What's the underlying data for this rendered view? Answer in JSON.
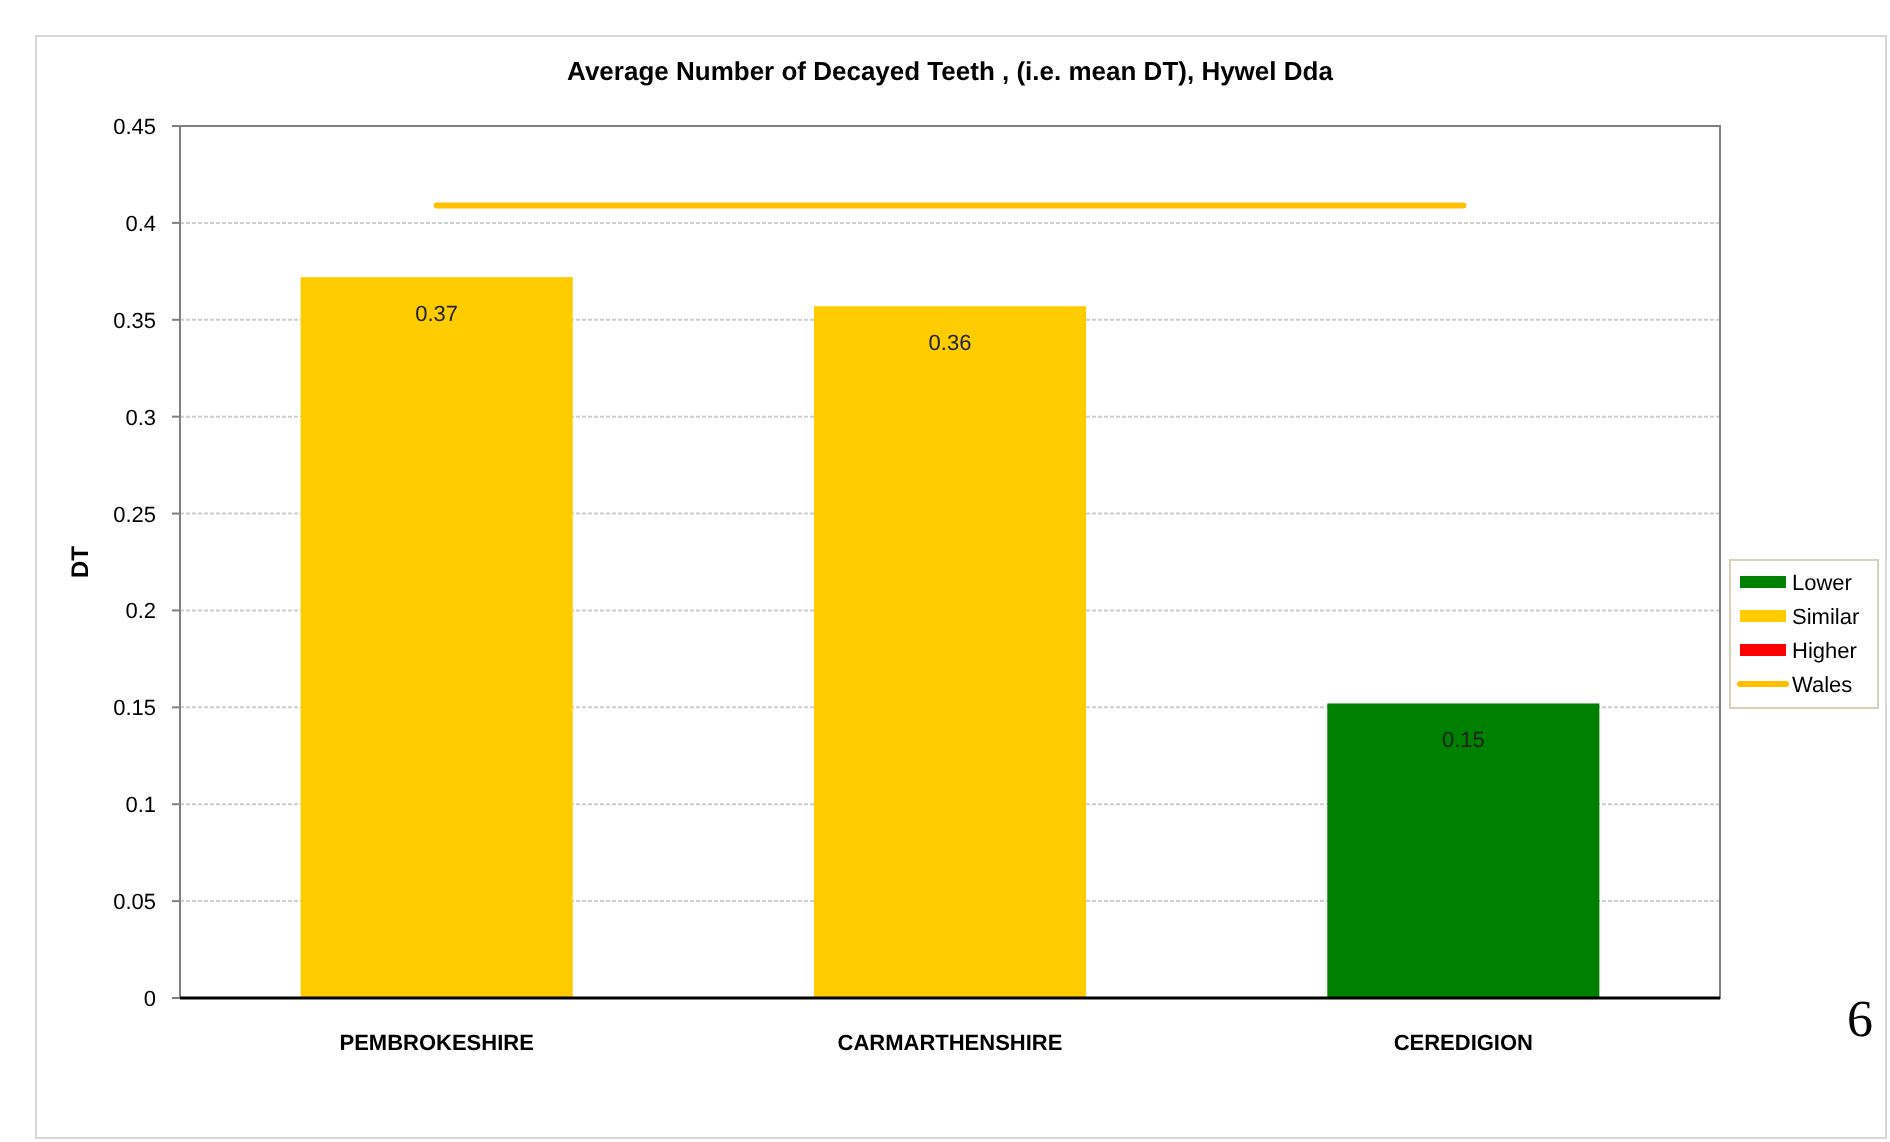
{
  "chart_data": {
    "type": "bar",
    "title": "Average Number of Decayed Teeth , (i.e. mean DT), Hywel Dda",
    "ylabel": "DT",
    "categories": [
      "PEMBROKESHIRE",
      "CARMARTHENSHIRE",
      "CEREDIGION"
    ],
    "series": [
      {
        "name": "Lower",
        "color": "#008000",
        "values": [
          null,
          null,
          0.152
        ],
        "value_labels": [
          null,
          null,
          "0.15"
        ]
      },
      {
        "name": "Similar",
        "color": "#ffcc00",
        "values": [
          0.372,
          0.357,
          null
        ],
        "value_labels": [
          "0.37",
          "0.36",
          null
        ]
      },
      {
        "name": "Higher",
        "color": "#ff0000",
        "values": [
          null,
          null,
          null
        ]
      },
      {
        "name": "Wales",
        "type": "line",
        "color": "#ffc000",
        "values": [
          0.409,
          0.409,
          0.409
        ]
      }
    ],
    "ylim": [
      0,
      0.45
    ],
    "yticks": [
      0,
      0.05,
      0.1,
      0.15,
      0.2,
      0.25,
      0.3,
      0.35,
      0.4,
      0.45
    ],
    "grid": "y",
    "legend": "right",
    "annotations": [
      "6"
    ]
  }
}
